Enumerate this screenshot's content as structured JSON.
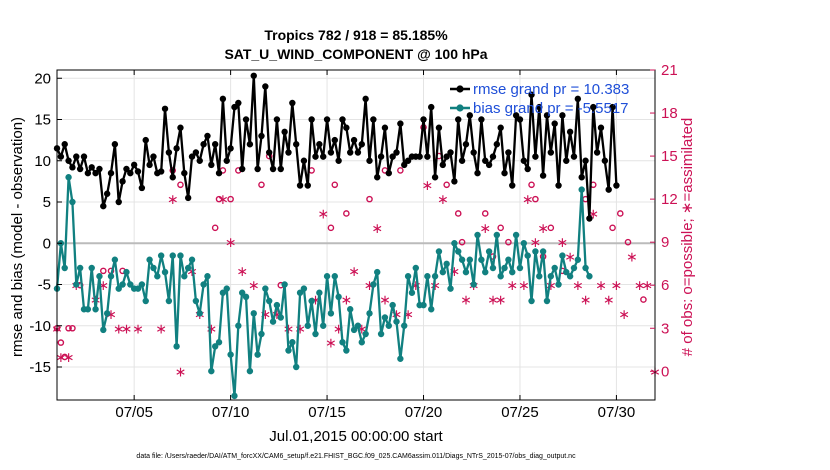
{
  "chart_data": {
    "type": "line",
    "title": "Tropics 782 / 918 = 85.185%",
    "subtitle": "SAT_U_WIND_COMPONENT @ 100 hPa",
    "xlabel": "Jul.01,2015 00:00:00 start",
    "ylabel_left": "rmse and bias (model - observation)",
    "ylabel_right": "# of obs: o=possible; ∗=assimilated",
    "footer": "data file: /Users/raeder/DAI/ATM_forcXX/CAM6_setup/f.e21.FHIST_BGC.f09_025.CAM6assim.011/Diags_NTrS_2015-07/obs_diag_output.nc",
    "xlim": [
      1.0,
      32.0
    ],
    "ylim_left": [
      -19,
      21
    ],
    "ylim_right": [
      -2,
      21
    ],
    "x_ticks": [
      5,
      10,
      15,
      20,
      25,
      30
    ],
    "x_tick_labels": [
      "07/05",
      "07/10",
      "07/15",
      "07/20",
      "07/25",
      "07/30"
    ],
    "y_left_ticks": [
      -15,
      -10,
      -5,
      0,
      5,
      10,
      15,
      20
    ],
    "y_left_tick_labels": [
      "-15",
      "-10",
      "-5",
      "0",
      "5",
      "10",
      "15",
      "20"
    ],
    "y_right_ticks": [
      0,
      3,
      6,
      9,
      12,
      15,
      18,
      21
    ],
    "y_right_tick_labels": [
      "0",
      "3",
      "6",
      "9",
      "12",
      "15",
      "18",
      "21"
    ],
    "legend_position": "top-right",
    "colors": {
      "rmse": "#000000",
      "bias": "#118080",
      "obs": "#cc1155",
      "zero_line": "#bbbbbb",
      "grid": "#e4e4e4",
      "legend_text": "#1f4fd8"
    },
    "series": [
      {
        "name": "rmse grand pr = 10.383",
        "values": [
          11.5,
          10.5,
          12,
          10,
          9.2,
          10.5,
          9,
          10.5,
          8.5,
          9.2,
          8.5,
          9,
          4.5,
          6,
          8.5,
          12,
          5,
          7.5,
          9,
          8.5,
          9.5,
          8.7,
          6.7,
          12.5,
          9.5,
          10.5,
          8.5,
          8.7,
          16.3,
          11,
          8,
          11.5,
          14,
          8.5,
          5.5,
          10.5,
          11,
          10,
          12,
          13,
          9.5,
          12,
          8.5,
          17.5,
          10,
          11.5,
          16.5,
          17,
          9,
          15,
          12,
          20.3,
          9,
          13,
          19,
          11,
          9,
          15,
          9,
          13.5,
          11,
          17,
          12,
          7,
          10,
          7,
          15,
          10.5,
          12,
          10.5,
          15,
          11,
          12.5,
          10,
          15,
          14,
          11,
          12.5,
          11,
          12,
          17.5,
          10,
          15,
          8,
          10.5,
          14,
          8.5,
          10.5,
          11,
          14.5,
          9.5,
          10,
          10.5,
          10.5,
          10.5,
          15,
          10.5,
          16.5,
          8,
          14,
          9.5,
          10.5,
          11,
          7.5,
          15,
          10,
          12,
          15.5,
          11,
          8.5,
          15,
          10,
          9.5,
          10.5,
          12,
          14,
          8.5,
          11,
          7,
          15.5,
          15,
          10,
          9,
          18,
          10.5,
          16.5,
          8.2,
          15.5,
          11,
          14.5,
          7,
          15.5,
          10,
          13.5,
          10.5,
          17.5,
          8,
          10,
          3,
          16.5,
          11,
          14,
          10,
          6.5,
          16.5,
          7
        ],
        "x_start": 1.0,
        "x_step": 0.2
      },
      {
        "name": "bias grand pr = -5.5517",
        "values": [
          -5.5,
          0,
          -3,
          8,
          5,
          -5,
          -3,
          -8,
          -8,
          -3,
          -8,
          -4,
          -10.5,
          -8.5,
          -4,
          -2,
          -5.5,
          -5,
          -3.5,
          -5,
          -5.5,
          -5.5,
          -5,
          -7,
          -2,
          -3,
          -4,
          -1.5,
          -3.5,
          -7,
          -1.5,
          -12.5,
          -1.5,
          -4,
          -3,
          -2,
          -7,
          -8.5,
          -5,
          -4,
          -15.5,
          -12.5,
          -12,
          -6,
          -5.5,
          -13.5,
          -18.5,
          -10,
          -6,
          -6.5,
          -15.5,
          -8.5,
          -13.5,
          -11,
          -5.5,
          -7,
          -9.5,
          -7.5,
          -9,
          -5,
          -13,
          -12,
          -15,
          -6,
          -5.5,
          -10,
          -7,
          -11,
          -6,
          -10,
          -4,
          -8.5,
          -4,
          -6.5,
          -12,
          -13,
          -8,
          -10.5,
          -10,
          -12,
          -11,
          -8.5,
          -5,
          -3.5,
          -11,
          -9,
          -10,
          -7.5,
          -9.5,
          -14,
          -10,
          -4,
          -6,
          -3,
          -7.5,
          -7.5,
          -4,
          -8,
          -4,
          -1,
          -3.5,
          -2.5,
          -5.5,
          0,
          -1,
          -2,
          -3.5,
          -2,
          -5,
          1,
          -2,
          -3.5,
          -1,
          -3,
          1,
          -4,
          -3,
          -2,
          -3.5,
          1,
          -3,
          0,
          -1.5,
          -7,
          -1,
          -4,
          -1,
          -7,
          -4,
          -3,
          -5,
          -1.5,
          -3.5,
          -4,
          -3,
          -2,
          6.5,
          -3,
          -4
        ],
        "x_start": 1.0,
        "x_step": 0.2
      }
    ],
    "obs_possible": [
      [
        1,
        3
      ],
      [
        1.2,
        2
      ],
      [
        1.4,
        1
      ],
      [
        1.6,
        3
      ],
      [
        1.8,
        3
      ],
      [
        2.2,
        6
      ],
      [
        3.4,
        7
      ],
      [
        3.8,
        7
      ],
      [
        4.4,
        7
      ],
      [
        7,
        14
      ],
      [
        7.4,
        13
      ],
      [
        9.2,
        10
      ],
      [
        9.4,
        12
      ],
      [
        9.6,
        14
      ],
      [
        10,
        12
      ],
      [
        10.4,
        14
      ],
      [
        11.6,
        13
      ],
      [
        12,
        15
      ],
      [
        12.6,
        6
      ],
      [
        14.2,
        14
      ],
      [
        15.2,
        10
      ],
      [
        15.4,
        13
      ],
      [
        16,
        11
      ],
      [
        17.2,
        12
      ],
      [
        18,
        14
      ],
      [
        18.8,
        14
      ],
      [
        20,
        17
      ],
      [
        20.8,
        15
      ],
      [
        21.2,
        13
      ],
      [
        21.8,
        11
      ],
      [
        22,
        9
      ],
      [
        23.2,
        11
      ],
      [
        23.6,
        8
      ],
      [
        24,
        10
      ],
      [
        24.4,
        9
      ],
      [
        25.6,
        13
      ],
      [
        25.8,
        12
      ],
      [
        26.2,
        8
      ],
      [
        26.6,
        10
      ],
      [
        27.2,
        7
      ],
      [
        28.4,
        12
      ],
      [
        28.8,
        13
      ],
      [
        29.8,
        10
      ],
      [
        30.2,
        11
      ],
      [
        30.6,
        9
      ],
      [
        31.4,
        5
      ]
    ],
    "obs_assimilated": [
      [
        1,
        3
      ],
      [
        1.2,
        1
      ],
      [
        1.6,
        1
      ],
      [
        2,
        6
      ],
      [
        3,
        5
      ],
      [
        3.4,
        6
      ],
      [
        3.8,
        4
      ],
      [
        4.2,
        3
      ],
      [
        4.6,
        3
      ],
      [
        5.2,
        3
      ],
      [
        6.4,
        3
      ],
      [
        7,
        12
      ],
      [
        7.4,
        0
      ],
      [
        8,
        7
      ],
      [
        8.4,
        4
      ],
      [
        9,
        3
      ],
      [
        9.6,
        12
      ],
      [
        10,
        9
      ],
      [
        10.6,
        7
      ],
      [
        11.2,
        6
      ],
      [
        11.8,
        4
      ],
      [
        12.4,
        4
      ],
      [
        13,
        3
      ],
      [
        13.6,
        3
      ],
      [
        14.4,
        5
      ],
      [
        14.8,
        11
      ],
      [
        15.2,
        2
      ],
      [
        15.6,
        3
      ],
      [
        16,
        5
      ],
      [
        16.4,
        7
      ],
      [
        16.8,
        3
      ],
      [
        17.2,
        6
      ],
      [
        17.6,
        10
      ],
      [
        18,
        5
      ],
      [
        18.6,
        4
      ],
      [
        19.2,
        4
      ],
      [
        19.6,
        6
      ],
      [
        20.2,
        13
      ],
      [
        20.6,
        6
      ],
      [
        21,
        12
      ],
      [
        21.6,
        7
      ],
      [
        22.2,
        5
      ],
      [
        22.6,
        6
      ],
      [
        23.2,
        10
      ],
      [
        23.6,
        5
      ],
      [
        24,
        5
      ],
      [
        24.6,
        6
      ],
      [
        25.2,
        6
      ],
      [
        25.4,
        12
      ],
      [
        25.8,
        9
      ],
      [
        26.2,
        10
      ],
      [
        26.6,
        6
      ],
      [
        27.2,
        9
      ],
      [
        27.6,
        8
      ],
      [
        28,
        6
      ],
      [
        28.4,
        5
      ],
      [
        28.8,
        11
      ],
      [
        29.2,
        6
      ],
      [
        29.6,
        5
      ],
      [
        30,
        6
      ],
      [
        30.4,
        4
      ],
      [
        30.8,
        8
      ],
      [
        31.2,
        6
      ],
      [
        31.6,
        6
      ],
      [
        32,
        0
      ]
    ]
  }
}
